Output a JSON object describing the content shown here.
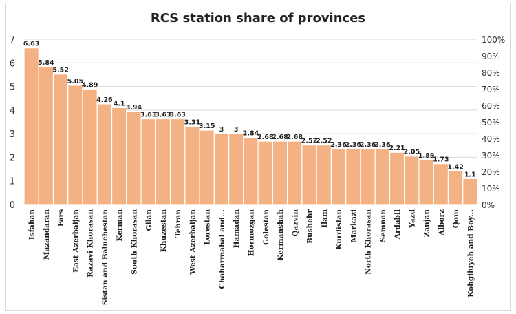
{
  "chart_data": {
    "type": "bar",
    "title": "RCS station share of provinces",
    "xlabel": "",
    "ylabel": "",
    "ylim": [
      0,
      7
    ],
    "yticks": [
      "0",
      "1",
      "2",
      "3",
      "4",
      "5",
      "6",
      "7"
    ],
    "y2lim": [
      0,
      100
    ],
    "y2ticks": [
      "0%",
      "10%",
      "20%",
      "30%",
      "40%",
      "50%",
      "60%",
      "70%",
      "80%",
      "90%",
      "100%"
    ],
    "grid": true,
    "legend": "none",
    "bar_color": "#F4B183",
    "categories": [
      "Isfahan",
      "Mazandaran",
      "Fars",
      "East Azerbaijan",
      "Razavi Khorasan",
      "Sistan and Baluchestan",
      "Kerman",
      "South Khorasan",
      "Gilan",
      "Khuzestan",
      "Tehran",
      "West Azerbaijan",
      "Lorestan",
      "Chaharmahal and...",
      "Hamadan",
      "Hormozgan",
      "Golestan",
      "Kermanshah",
      "Qazvin",
      "Bushehr",
      "Ilam",
      "Kurdistan",
      "Markazi",
      "North Khorasan",
      "Semnan",
      "Ardabil",
      "Yazd",
      "Zanjan",
      "Alborz",
      "Qom",
      "Kohgiluyeh and Boy..."
    ],
    "values": [
      6.63,
      5.84,
      5.52,
      5.05,
      4.89,
      4.26,
      4.1,
      3.94,
      3.63,
      3.63,
      3.63,
      3.31,
      3.15,
      3,
      3,
      2.84,
      2.68,
      2.68,
      2.68,
      2.52,
      2.52,
      2.36,
      2.36,
      2.36,
      2.36,
      2.21,
      2.05,
      1.89,
      1.73,
      1.42,
      1.1
    ]
  }
}
